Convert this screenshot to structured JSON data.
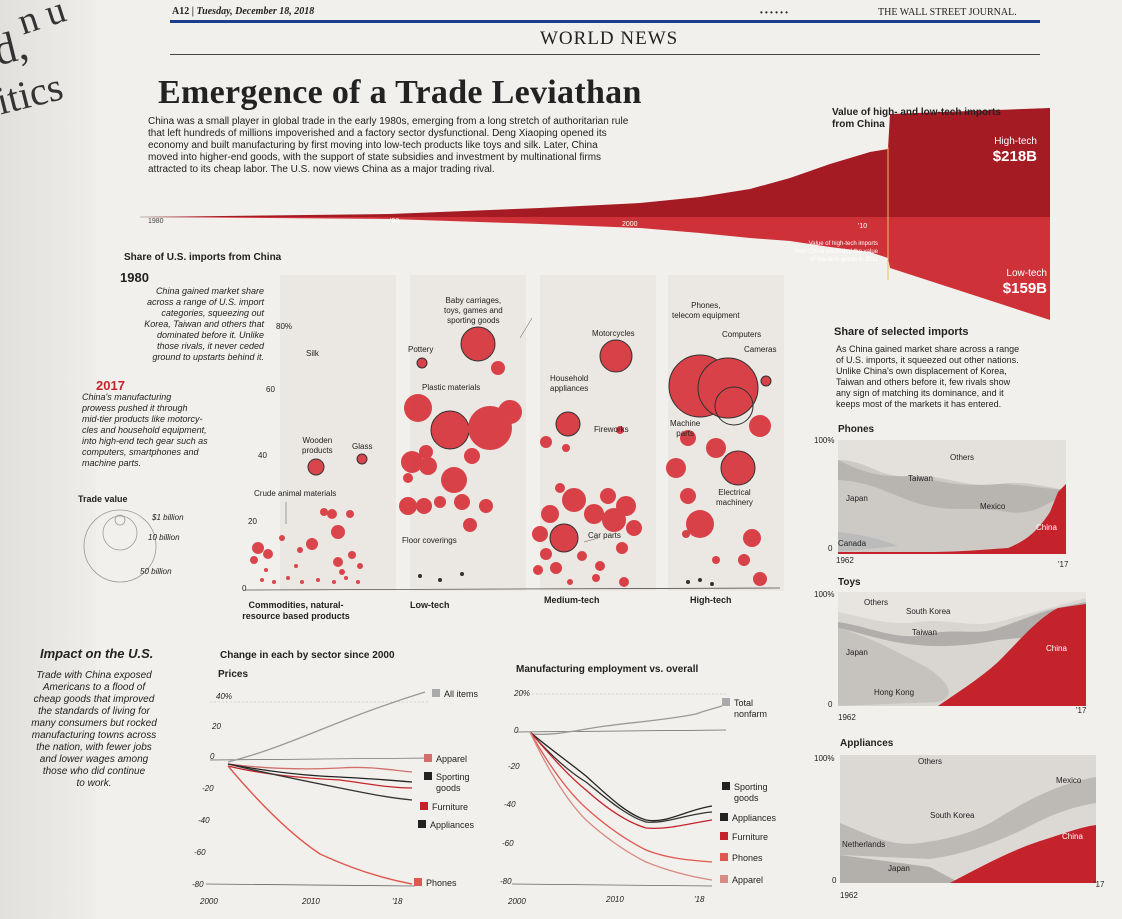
{
  "masthead": {
    "page": "A12",
    "date": "Tuesday, December 18, 2018",
    "dots": "• • • • • •",
    "paper": "THE WALL STREET JOURNAL.",
    "section": "WORLD NEWS"
  },
  "left_edge": {
    "frag1": "n u",
    "frag2": "d,",
    "frag3": "itics"
  },
  "headline": "Emergence of a Trade Leviathan",
  "intro": [
    "China was a small player in global trade in the early 1980s, emerging from a long stretch of authoritarian rule",
    "that left hundreds of millions impoverished and a factory sector dysfunctional. Deng Xiaoping opened its",
    "economy and built manufacturing by first moving into low-tech products like toys and silk. Later, China",
    "moved into higher-end goods, with the support of state subsidies and investment by multinational firms",
    "attracted to its cheap labor. The U.S. now views China as a major trading rival."
  ],
  "stream": {
    "title": [
      "Value of high- and low-tech imports",
      "from China"
    ],
    "high_label": "High-tech",
    "high_value": "$218B",
    "low_label": "Low-tech",
    "low_value": "$159B",
    "years": [
      "1980",
      "'90",
      "2000",
      "'10"
    ],
    "note": [
      "Value of high-tech imports",
      "from China exceeded the value",
      "of low-tech goods in 2011"
    ]
  },
  "share": {
    "title": "Share of U.S. imports from China",
    "y1980": "1980",
    "text1980": [
      "China gained market share",
      "across a range of U.S. import",
      "categories, squeezing out",
      "Korea, Taiwan and others that",
      "dominated before it. Unlike",
      "those rivals, it never ceded",
      "ground to upstarts behind it."
    ],
    "y2017": "2017",
    "text2017": [
      "China's manufacturing",
      "prowess pushed it through",
      "mid-tier products like motorcy-",
      "cles and household equipment,",
      "into high-end tech gear such as",
      "computers, smartphones and",
      "machine parts."
    ],
    "yticks": [
      "80%",
      "60",
      "40",
      "20",
      "0"
    ],
    "trade_title": "Trade value",
    "trade_sizes": [
      "$1 billion",
      "10 billion",
      "50 billion"
    ],
    "categories": [
      "Commodities, natural-",
      "resource based products",
      "Low-tech",
      "Medium-tech",
      "High-tech"
    ],
    "labels": {
      "silk": "Silk",
      "wooden": [
        "Wooden",
        "products"
      ],
      "glass": "Glass",
      "crude": "Crude animal materials",
      "baby": [
        "Baby carriages,",
        "toys, games and",
        "sporting goods"
      ],
      "pottery": "Pottery",
      "plastic": "Plastic materials",
      "floor": "Floor coverings",
      "motorcycles": "Motorcycles",
      "household": [
        "Household",
        "appliances"
      ],
      "fireworks": "Fireworks",
      "carparts": "Car parts",
      "phones": [
        "Phones,",
        "telecom equipment"
      ],
      "computers": "Computers",
      "cameras": "Cameras",
      "machine": [
        "Machine",
        "parts"
      ],
      "electrical": [
        "Electrical",
        "machinery"
      ]
    }
  },
  "selected": {
    "title": "Share of selected imports",
    "text": [
      "As China gained market share across a range",
      "of U.S. imports, it squeezed out other nations.",
      "Unlike China's own displacement of Korea,",
      "Taiwan and others before it, few rivals show",
      "any sign of matching its dominance, and it",
      "keeps most of the markets it has entered."
    ],
    "phones": {
      "title": "Phones",
      "top": "100%",
      "bottom": "0",
      "start": "1962",
      "end": "'17",
      "labels": [
        "Others",
        "Taiwan",
        "Japan",
        "Mexico",
        "Canada",
        "China"
      ]
    },
    "toys": {
      "title": "Toys",
      "top": "100%",
      "bottom": "0",
      "start": "1962",
      "end": "'17",
      "labels": [
        "Others",
        "South Korea",
        "Taiwan",
        "Japan",
        "Hong Kong",
        "China"
      ]
    },
    "appliances": {
      "title": "Appliances",
      "top": "100%",
      "bottom": "0",
      "start": "1962",
      "end": "'17",
      "labels": [
        "Others",
        "Mexico",
        "South Korea",
        "Netherlands",
        "Japan",
        "China"
      ]
    }
  },
  "impact": {
    "title": "Impact on the U.S.",
    "text": [
      "Trade with China exposed",
      "Americans to a flood of",
      "cheap goods that improved",
      "the standards of living for",
      "many consumers but rocked",
      "manufacturing towns across",
      "the nation, with fewer jobs",
      "and lower wages among",
      "those who did continue",
      "to work."
    ],
    "change_title": "Change in each by sector since 2000",
    "prices_title": "Prices",
    "prices_yticks": [
      "40%",
      "20",
      "0",
      "-20",
      "-40",
      "-60",
      "-80"
    ],
    "prices_xticks": [
      "2000",
      "2010",
      "'18"
    ],
    "prices_legend": [
      "All items",
      "Apparel",
      "Sporting",
      "goods",
      "Furniture",
      "Appliances",
      "Phones"
    ],
    "emp_title": "Manufacturing employment vs. overall",
    "emp_yticks": [
      "20%",
      "0",
      "-20",
      "-40",
      "-60",
      "-80"
    ],
    "emp_xticks": [
      "2000",
      "2010",
      "'18"
    ],
    "emp_legend": [
      "Total",
      "nonfarm",
      "Sporting",
      "goods",
      "Appliances",
      "Furniture",
      "Phones",
      "Apparel"
    ]
  },
  "colors": {
    "red": "#c4232c",
    "dark": "#8e1016",
    "grey": "#9a9a9a"
  }
}
